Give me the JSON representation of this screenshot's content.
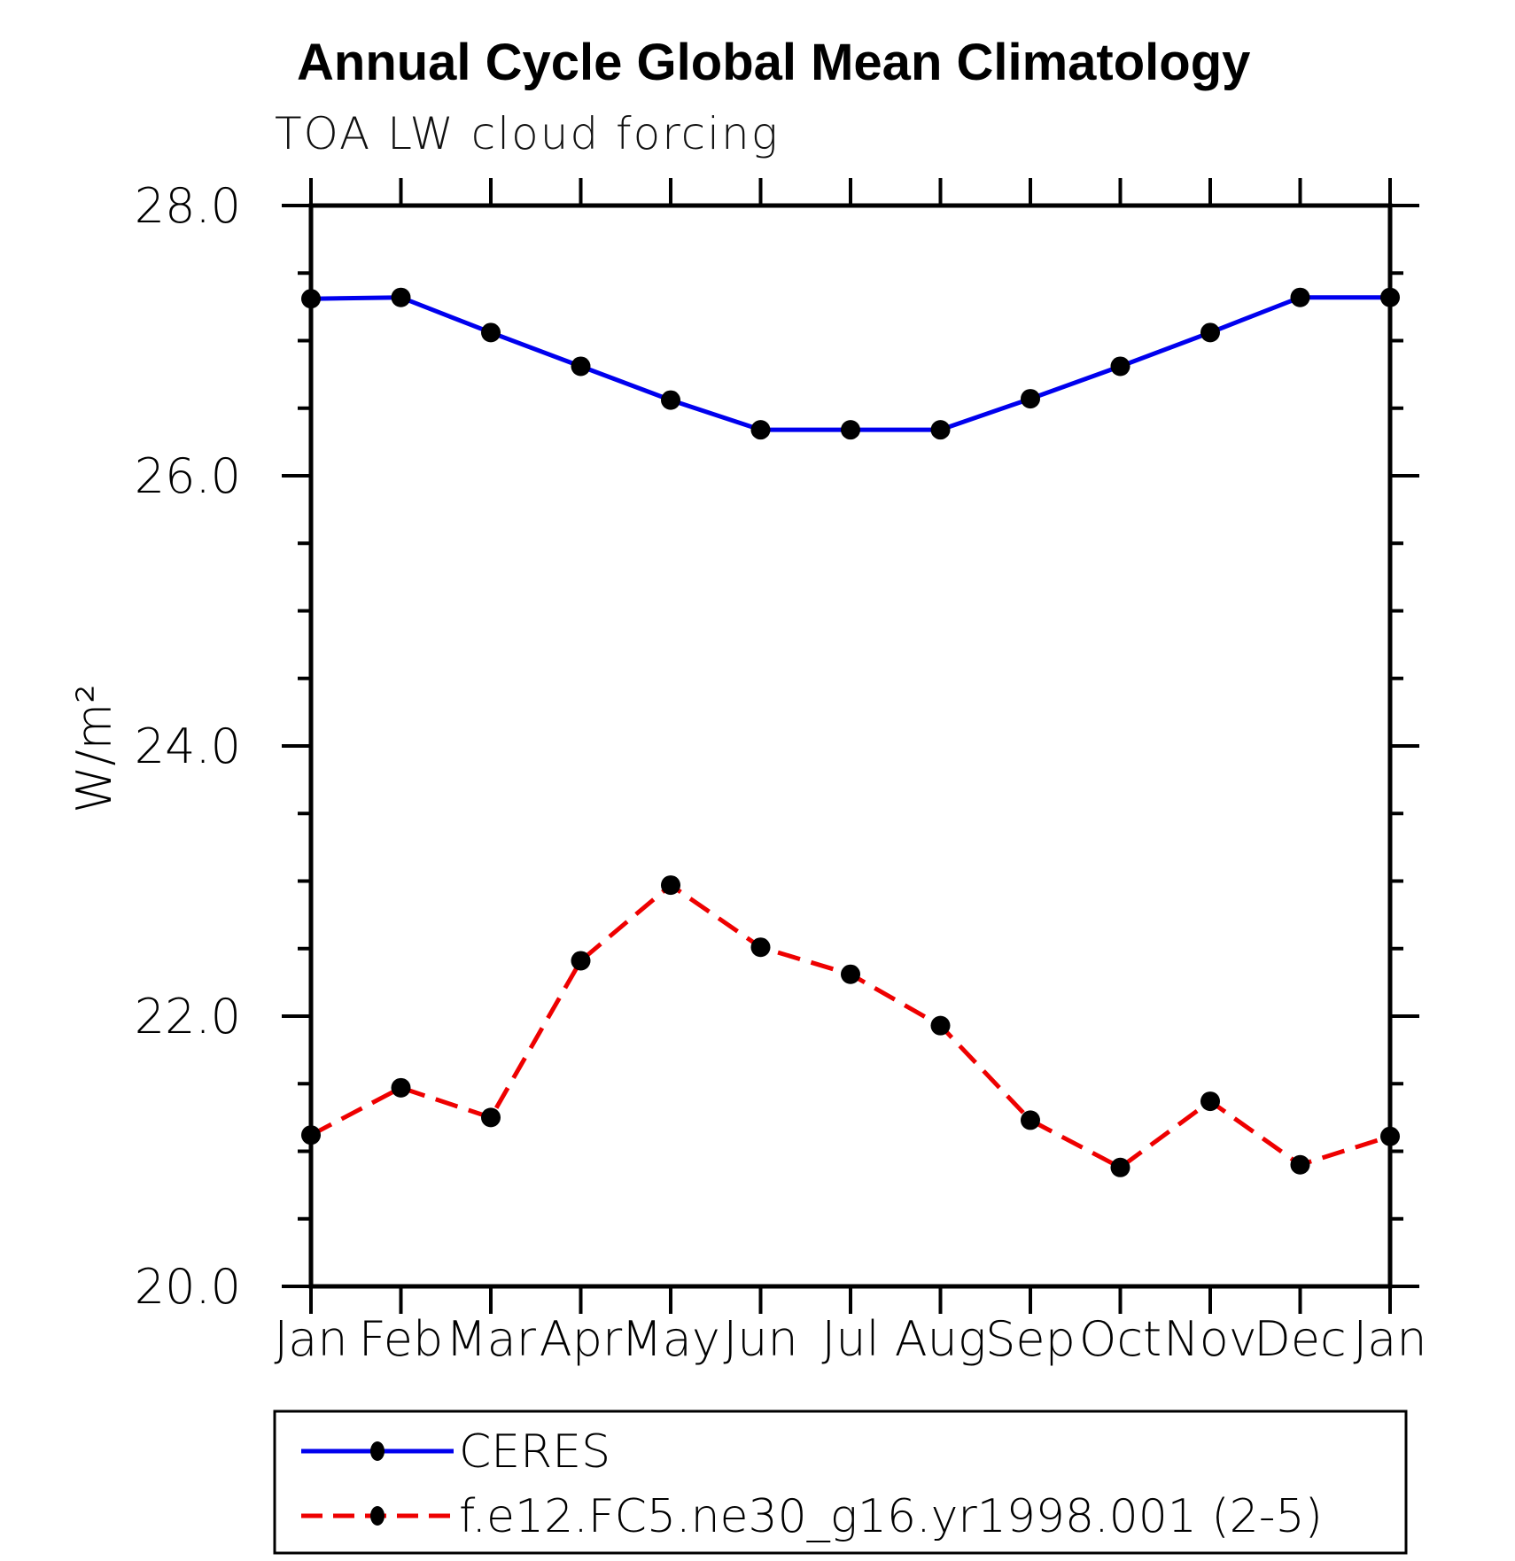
{
  "chart_data": {
    "type": "line",
    "title": "Annual Cycle Global Mean Climatology",
    "subtitle": "TOA LW cloud forcing",
    "ylabel": "W/m²",
    "x_ticklabels": [
      "Jan",
      "Feb",
      "Mar",
      "Apr",
      "May",
      "Jun",
      "Jul",
      "Aug",
      "Sep",
      "Oct",
      "Nov",
      "Dec",
      "Jan"
    ],
    "ylim": [
      20.0,
      28.0
    ],
    "y_major_ticks": [
      20.0,
      22.0,
      24.0,
      26.0,
      28.0
    ],
    "y_tick_label_format": [
      "20.0",
      "22.0",
      "24.0",
      "26.0",
      "28.0"
    ],
    "y_minor_step": 0.5,
    "grid": false,
    "legend_position": "bottom-left-box",
    "axis_color": "#000000",
    "marker_color": "#000000",
    "series": [
      {
        "name": "CERES",
        "color": "#0000ee",
        "style": "solid",
        "marker": "circle",
        "values": [
          27.31,
          27.32,
          27.06,
          26.81,
          26.56,
          26.34,
          26.34,
          26.34,
          26.57,
          26.81,
          27.06,
          27.32,
          27.32
        ]
      },
      {
        "name": "f.e12.FC5.ne30_g16.yr1998.001 (2-5)",
        "color": "#ee0000",
        "style": "dashed",
        "marker": "circle",
        "values": [
          21.12,
          21.47,
          21.25,
          22.41,
          22.97,
          22.51,
          22.31,
          21.93,
          21.23,
          20.88,
          21.37,
          20.9,
          21.11
        ]
      }
    ]
  }
}
